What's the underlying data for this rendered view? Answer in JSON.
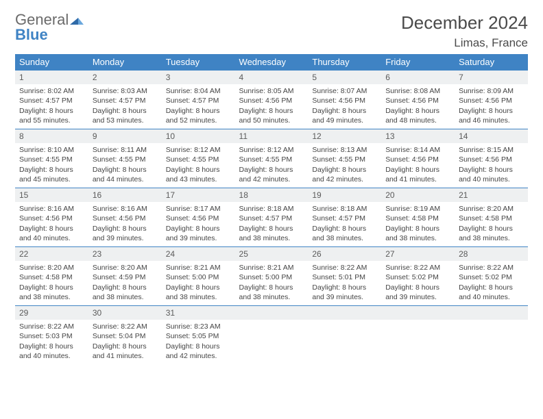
{
  "logo": {
    "line1": "General",
    "line2": "Blue"
  },
  "title": "December 2024",
  "location": "Limas, France",
  "colors": {
    "header_bg": "#3f83c4",
    "header_text": "#ffffff",
    "daynum_bg": "#eef0f1",
    "rule": "#3f83c4",
    "body_text": "#444444",
    "title_text": "#4a4a4a"
  },
  "day_names": [
    "Sunday",
    "Monday",
    "Tuesday",
    "Wednesday",
    "Thursday",
    "Friday",
    "Saturday"
  ],
  "weeks": [
    [
      {
        "num": "1",
        "sunrise": "8:02 AM",
        "sunset": "4:57 PM",
        "daylight": "8 hours and 55 minutes."
      },
      {
        "num": "2",
        "sunrise": "8:03 AM",
        "sunset": "4:57 PM",
        "daylight": "8 hours and 53 minutes."
      },
      {
        "num": "3",
        "sunrise": "8:04 AM",
        "sunset": "4:57 PM",
        "daylight": "8 hours and 52 minutes."
      },
      {
        "num": "4",
        "sunrise": "8:05 AM",
        "sunset": "4:56 PM",
        "daylight": "8 hours and 50 minutes."
      },
      {
        "num": "5",
        "sunrise": "8:07 AM",
        "sunset": "4:56 PM",
        "daylight": "8 hours and 49 minutes."
      },
      {
        "num": "6",
        "sunrise": "8:08 AM",
        "sunset": "4:56 PM",
        "daylight": "8 hours and 48 minutes."
      },
      {
        "num": "7",
        "sunrise": "8:09 AM",
        "sunset": "4:56 PM",
        "daylight": "8 hours and 46 minutes."
      }
    ],
    [
      {
        "num": "8",
        "sunrise": "8:10 AM",
        "sunset": "4:55 PM",
        "daylight": "8 hours and 45 minutes."
      },
      {
        "num": "9",
        "sunrise": "8:11 AM",
        "sunset": "4:55 PM",
        "daylight": "8 hours and 44 minutes."
      },
      {
        "num": "10",
        "sunrise": "8:12 AM",
        "sunset": "4:55 PM",
        "daylight": "8 hours and 43 minutes."
      },
      {
        "num": "11",
        "sunrise": "8:12 AM",
        "sunset": "4:55 PM",
        "daylight": "8 hours and 42 minutes."
      },
      {
        "num": "12",
        "sunrise": "8:13 AM",
        "sunset": "4:55 PM",
        "daylight": "8 hours and 42 minutes."
      },
      {
        "num": "13",
        "sunrise": "8:14 AM",
        "sunset": "4:56 PM",
        "daylight": "8 hours and 41 minutes."
      },
      {
        "num": "14",
        "sunrise": "8:15 AM",
        "sunset": "4:56 PM",
        "daylight": "8 hours and 40 minutes."
      }
    ],
    [
      {
        "num": "15",
        "sunrise": "8:16 AM",
        "sunset": "4:56 PM",
        "daylight": "8 hours and 40 minutes."
      },
      {
        "num": "16",
        "sunrise": "8:16 AM",
        "sunset": "4:56 PM",
        "daylight": "8 hours and 39 minutes."
      },
      {
        "num": "17",
        "sunrise": "8:17 AM",
        "sunset": "4:56 PM",
        "daylight": "8 hours and 39 minutes."
      },
      {
        "num": "18",
        "sunrise": "8:18 AM",
        "sunset": "4:57 PM",
        "daylight": "8 hours and 38 minutes."
      },
      {
        "num": "19",
        "sunrise": "8:18 AM",
        "sunset": "4:57 PM",
        "daylight": "8 hours and 38 minutes."
      },
      {
        "num": "20",
        "sunrise": "8:19 AM",
        "sunset": "4:58 PM",
        "daylight": "8 hours and 38 minutes."
      },
      {
        "num": "21",
        "sunrise": "8:20 AM",
        "sunset": "4:58 PM",
        "daylight": "8 hours and 38 minutes."
      }
    ],
    [
      {
        "num": "22",
        "sunrise": "8:20 AM",
        "sunset": "4:58 PM",
        "daylight": "8 hours and 38 minutes."
      },
      {
        "num": "23",
        "sunrise": "8:20 AM",
        "sunset": "4:59 PM",
        "daylight": "8 hours and 38 minutes."
      },
      {
        "num": "24",
        "sunrise": "8:21 AM",
        "sunset": "5:00 PM",
        "daylight": "8 hours and 38 minutes."
      },
      {
        "num": "25",
        "sunrise": "8:21 AM",
        "sunset": "5:00 PM",
        "daylight": "8 hours and 38 minutes."
      },
      {
        "num": "26",
        "sunrise": "8:22 AM",
        "sunset": "5:01 PM",
        "daylight": "8 hours and 39 minutes."
      },
      {
        "num": "27",
        "sunrise": "8:22 AM",
        "sunset": "5:02 PM",
        "daylight": "8 hours and 39 minutes."
      },
      {
        "num": "28",
        "sunrise": "8:22 AM",
        "sunset": "5:02 PM",
        "daylight": "8 hours and 40 minutes."
      }
    ],
    [
      {
        "num": "29",
        "sunrise": "8:22 AM",
        "sunset": "5:03 PM",
        "daylight": "8 hours and 40 minutes."
      },
      {
        "num": "30",
        "sunrise": "8:22 AM",
        "sunset": "5:04 PM",
        "daylight": "8 hours and 41 minutes."
      },
      {
        "num": "31",
        "sunrise": "8:23 AM",
        "sunset": "5:05 PM",
        "daylight": "8 hours and 42 minutes."
      },
      null,
      null,
      null,
      null
    ]
  ],
  "labels": {
    "sunrise_prefix": "Sunrise: ",
    "sunset_prefix": "Sunset: ",
    "daylight_prefix": "Daylight: "
  }
}
